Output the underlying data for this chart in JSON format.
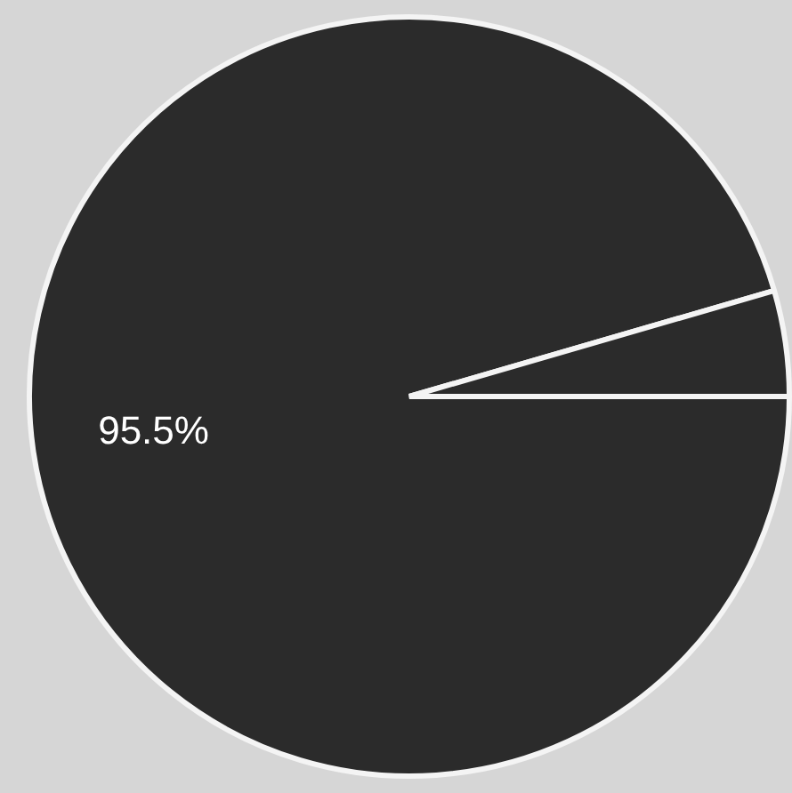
{
  "chart_data": {
    "type": "pie",
    "categories": [
      null,
      null
    ],
    "values": [
      95.5,
      4.5
    ],
    "colors": [
      "#2b2b2b",
      "#2b2b2b"
    ],
    "value_labels": [
      "95.5%",
      null
    ],
    "legend": false
  }
}
